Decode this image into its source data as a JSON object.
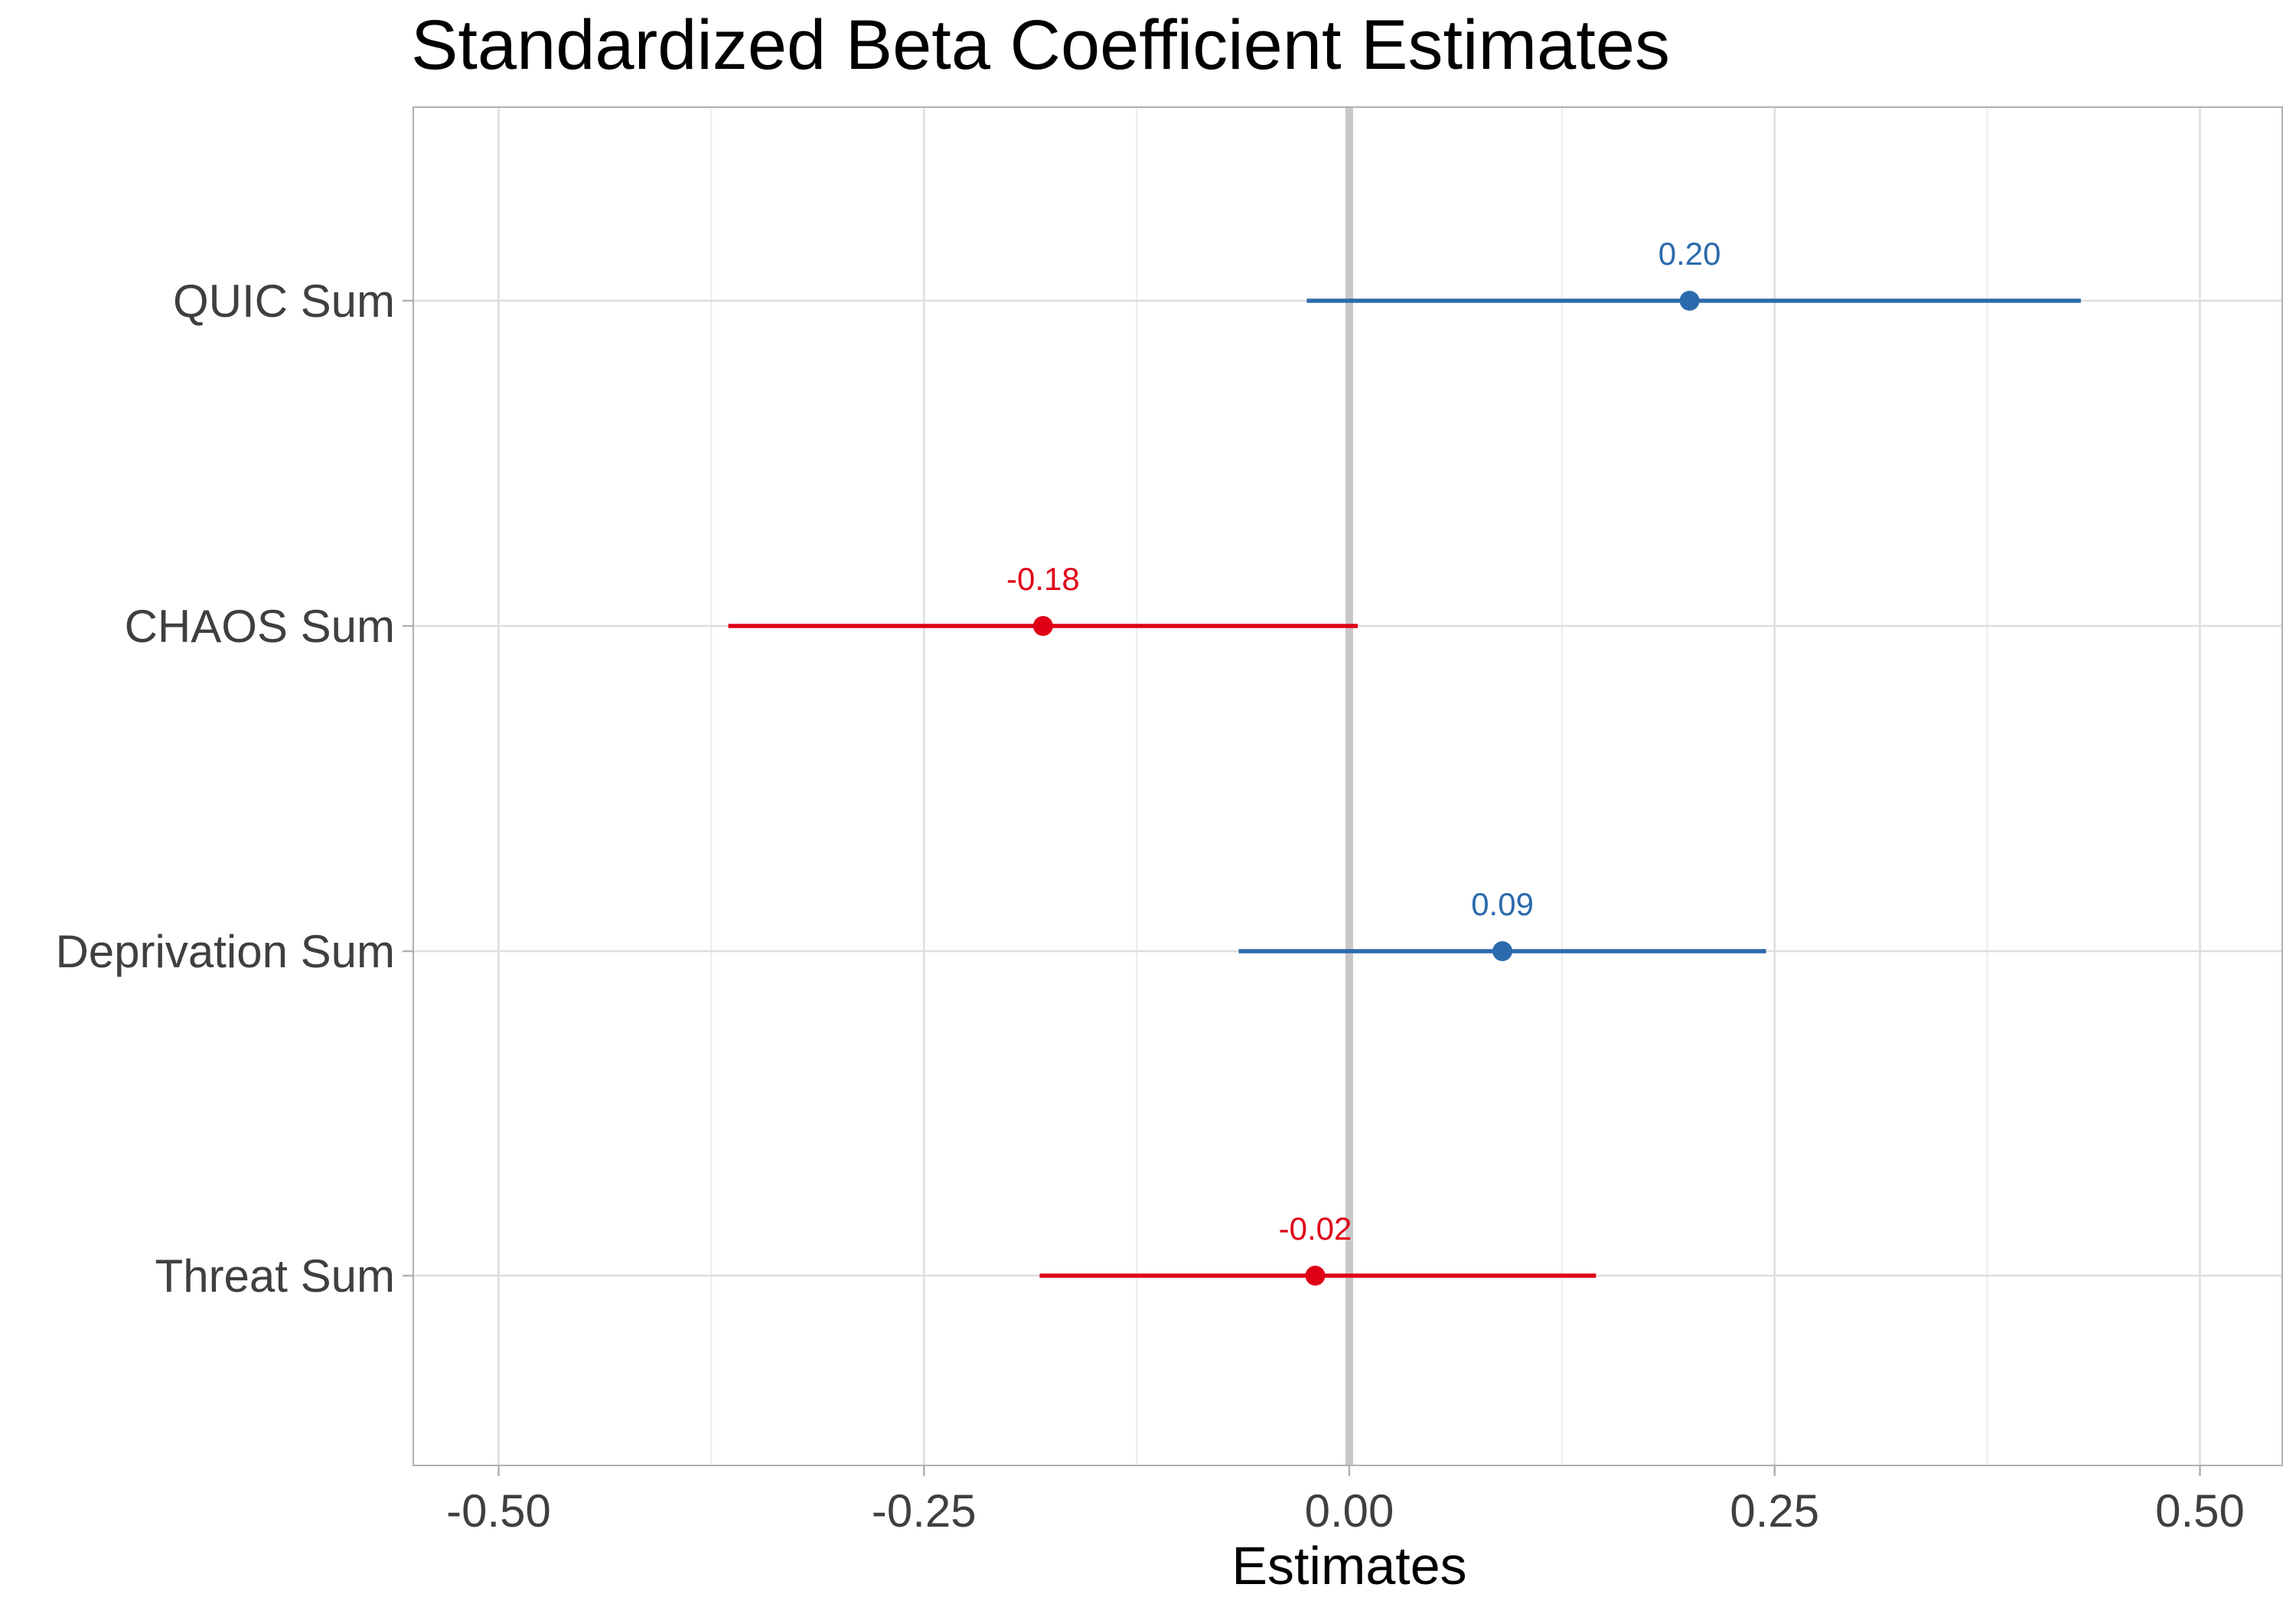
{
  "chart_data": {
    "type": "forest",
    "title": "Standardized Beta Coefficient Estimates",
    "xlabel": "Estimates",
    "ylabel": "",
    "xlim": [
      -0.55,
      0.55
    ],
    "x_ticks": [
      -0.5,
      -0.25,
      0.0,
      0.25,
      0.5
    ],
    "x_tick_labels": [
      "-0.50",
      "-0.25",
      "0.00",
      "0.25",
      "0.50"
    ],
    "reference_line": 0.0,
    "grid": true,
    "categories": [
      "QUIC Sum",
      "CHAOS Sum",
      "Deprivation Sum",
      "Threat Sum"
    ],
    "points": [
      {
        "term": "QUIC Sum",
        "estimate": 0.2,
        "ci_low": -0.025,
        "ci_high": 0.43,
        "label": "0.20",
        "color": "#2b6aac"
      },
      {
        "term": "CHAOS Sum",
        "estimate": -0.18,
        "ci_low": -0.365,
        "ci_high": 0.005,
        "label": "-0.18",
        "color": "#e00016"
      },
      {
        "term": "Deprivation Sum",
        "estimate": 0.09,
        "ci_low": -0.065,
        "ci_high": 0.245,
        "label": "0.09",
        "color": "#2b6aac"
      },
      {
        "term": "Threat Sum",
        "estimate": -0.02,
        "ci_low": -0.182,
        "ci_high": 0.145,
        "label": "-0.02",
        "color": "#e00016"
      }
    ],
    "colors": {
      "positive": "#2b6aac",
      "negative": "#e00016"
    }
  }
}
